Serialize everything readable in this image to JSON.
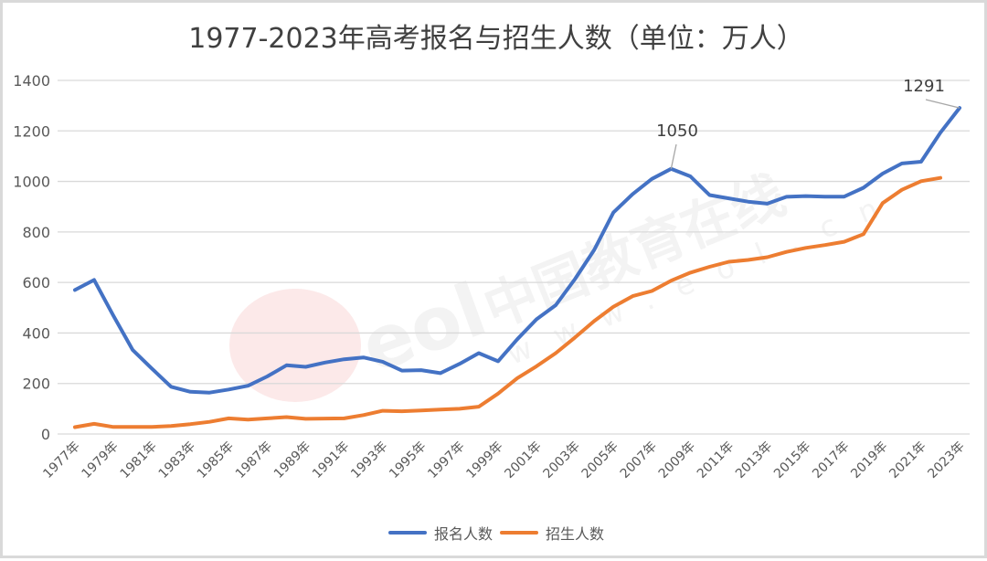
{
  "chart_data": {
    "type": "line",
    "title": "1977-2023年高考报名与招生人数（单位：万人）",
    "xlabel": "",
    "ylabel": "",
    "ylim": [
      0,
      1400
    ],
    "yticks": [
      0,
      200,
      400,
      600,
      800,
      1000,
      1200,
      1400
    ],
    "grid": true,
    "legend_position": "bottom",
    "x": [
      "1977年",
      "1978年",
      "1979年",
      "1980年",
      "1981年",
      "1982年",
      "1983年",
      "1984年",
      "1985年",
      "1986年",
      "1987年",
      "1988年",
      "1989年",
      "1990年",
      "1991年",
      "1992年",
      "1993年",
      "1994年",
      "1995年",
      "1996年",
      "1997年",
      "1998年",
      "1999年",
      "2000年",
      "2001年",
      "2002年",
      "2003年",
      "2004年",
      "2005年",
      "2006年",
      "2007年",
      "2008年",
      "2009年",
      "2010年",
      "2011年",
      "2012年",
      "2013年",
      "2014年",
      "2015年",
      "2016年",
      "2017年",
      "2018年",
      "2019年",
      "2020年",
      "2021年",
      "2022年",
      "2023年"
    ],
    "xtick_labels": [
      "1977年",
      "1979年",
      "1981年",
      "1983年",
      "1985年",
      "1987年",
      "1989年",
      "1991年",
      "1993年",
      "1995年",
      "1997年",
      "1999年",
      "2001年",
      "2003年",
      "2005年",
      "2007年",
      "2009年",
      "2011年",
      "2013年",
      "2015年",
      "2017年",
      "2019年",
      "2021年",
      "2023年"
    ],
    "series": [
      {
        "name": "报名人数",
        "color": "#4472c4",
        "values": [
          570,
          610,
          468,
          333,
          259,
          187,
          167,
          164,
          176,
          191,
          228,
          272,
          266,
          283,
          296,
          303,
          286,
          251,
          253,
          241,
          278,
          320,
          288,
          375,
          454,
          510,
          613,
          729,
          877,
          950,
          1010,
          1050,
          1020,
          946,
          933,
          920,
          912,
          939,
          942,
          940,
          940,
          975,
          1031,
          1071,
          1078,
          1193,
          1291
        ]
      },
      {
        "name": "招生人数",
        "color": "#ed7d31",
        "values": [
          27,
          40,
          28,
          28,
          28,
          32,
          39,
          48,
          62,
          57,
          62,
          67,
          60,
          61,
          62,
          75,
          92,
          90,
          93,
          97,
          100,
          108,
          160,
          221,
          268,
          320,
          382,
          447,
          504,
          546,
          566,
          607,
          639,
          662,
          682,
          689,
          700,
          721,
          737,
          748,
          761,
          791,
          914,
          967,
          1001,
          1014,
          null
        ]
      }
    ],
    "annotations": [
      {
        "label": "1050",
        "series": "报名人数",
        "x": "2008年",
        "value": 1050
      },
      {
        "label": "1291",
        "series": "报名人数",
        "x": "2023年",
        "value": 1291
      }
    ]
  },
  "legend": {
    "items": [
      {
        "label": "报名人数",
        "color": "#4472c4"
      },
      {
        "label": "招生人数",
        "color": "#ed7d31"
      }
    ]
  },
  "watermark": {
    "text_cn": "中国教育在线",
    "text_url": "www.eol.cn",
    "logo": "eol"
  }
}
